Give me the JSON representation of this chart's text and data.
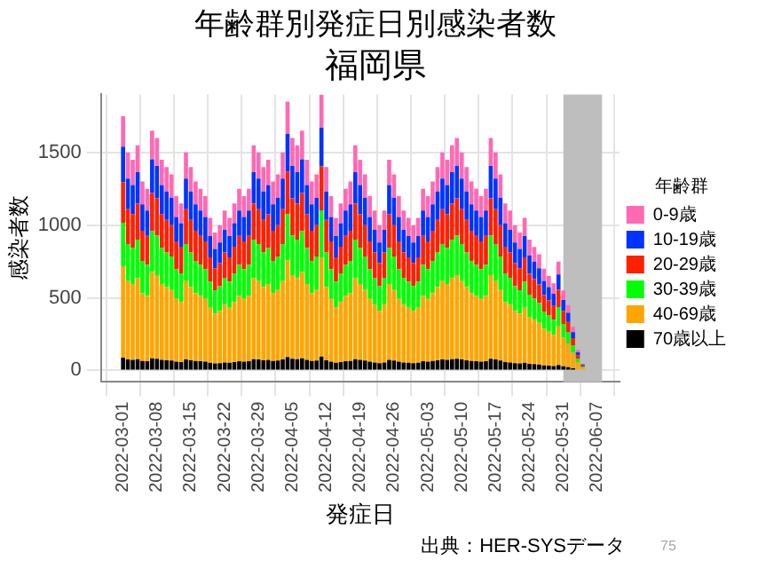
{
  "chart_data": {
    "type": "bar",
    "title": "年齢群別発症日別感染者数",
    "subtitle": "福岡県",
    "xlabel": "発症日",
    "ylabel": "感染者数",
    "legend_title": "年齢群",
    "annotations": [
      "出典：HER-SYSデータ",
      "75"
    ],
    "x": [
      "2022-03-01",
      "2022-03-02",
      "2022-03-03",
      "2022-03-04",
      "2022-03-05",
      "2022-03-06",
      "2022-03-07",
      "2022-03-08",
      "2022-03-09",
      "2022-03-10",
      "2022-03-11",
      "2022-03-12",
      "2022-03-13",
      "2022-03-14",
      "2022-03-15",
      "2022-03-16",
      "2022-03-17",
      "2022-03-18",
      "2022-03-19",
      "2022-03-20",
      "2022-03-21",
      "2022-03-22",
      "2022-03-23",
      "2022-03-24",
      "2022-03-25",
      "2022-03-26",
      "2022-03-27",
      "2022-03-28",
      "2022-03-29",
      "2022-03-30",
      "2022-03-31",
      "2022-04-01",
      "2022-04-02",
      "2022-04-03",
      "2022-04-04",
      "2022-04-05",
      "2022-04-06",
      "2022-04-07",
      "2022-04-08",
      "2022-04-09",
      "2022-04-10",
      "2022-04-11",
      "2022-04-12",
      "2022-04-13",
      "2022-04-14",
      "2022-04-15",
      "2022-04-16",
      "2022-04-17",
      "2022-04-18",
      "2022-04-19",
      "2022-04-20",
      "2022-04-21",
      "2022-04-22",
      "2022-04-23",
      "2022-04-24",
      "2022-04-25",
      "2022-04-26",
      "2022-04-27",
      "2022-04-28",
      "2022-04-29",
      "2022-04-30",
      "2022-05-01",
      "2022-05-02",
      "2022-05-03",
      "2022-05-04",
      "2022-05-05",
      "2022-05-06",
      "2022-05-07",
      "2022-05-08",
      "2022-05-09",
      "2022-05-10",
      "2022-05-11",
      "2022-05-12",
      "2022-05-13",
      "2022-05-14",
      "2022-05-15",
      "2022-05-16",
      "2022-05-17",
      "2022-05-18",
      "2022-05-19",
      "2022-05-20",
      "2022-05-21",
      "2022-05-22",
      "2022-05-23",
      "2022-05-24",
      "2022-05-25",
      "2022-05-26",
      "2022-05-27",
      "2022-05-28",
      "2022-05-29",
      "2022-05-30",
      "2022-05-31",
      "2022-06-01",
      "2022-06-02",
      "2022-06-03",
      "2022-06-04"
    ],
    "series": [
      {
        "name": "70歳以上",
        "color": "#000000",
        "values": [
          88,
          75,
          73,
          78,
          65,
          63,
          83,
          80,
          73,
          70,
          68,
          60,
          58,
          75,
          70,
          65,
          63,
          60,
          53,
          48,
          50,
          55,
          53,
          58,
          63,
          60,
          63,
          78,
          75,
          70,
          73,
          65,
          68,
          75,
          93,
          80,
          78,
          83,
          73,
          65,
          68,
          95,
          70,
          60,
          53,
          58,
          63,
          65,
          78,
          73,
          68,
          60,
          55,
          50,
          55,
          73,
          68,
          60,
          55,
          53,
          50,
          53,
          63,
          60,
          65,
          70,
          75,
          73,
          78,
          80,
          75,
          70,
          65,
          63,
          60,
          63,
          80,
          75,
          68,
          58,
          55,
          50,
          48,
          53,
          45,
          43,
          40,
          35,
          33,
          30,
          38,
          28,
          23,
          15,
          null,
          null
        ]
      },
      {
        "name": "40-69歳",
        "color": "#ffa500",
        "values": [
          630,
          540,
          522,
          558,
          468,
          450,
          594,
          576,
          522,
          504,
          486,
          432,
          414,
          540,
          504,
          468,
          450,
          432,
          378,
          342,
          360,
          396,
          378,
          414,
          450,
          432,
          450,
          558,
          540,
          504,
          522,
          468,
          486,
          540,
          666,
          576,
          558,
          594,
          522,
          468,
          486,
          684,
          504,
          432,
          378,
          414,
          450,
          468,
          558,
          522,
          486,
          432,
          396,
          360,
          396,
          522,
          486,
          432,
          396,
          378,
          360,
          378,
          450,
          432,
          468,
          504,
          540,
          522,
          558,
          576,
          540,
          504,
          468,
          450,
          432,
          450,
          576,
          540,
          486,
          414,
          396,
          360,
          342,
          378,
          324,
          306,
          288,
          252,
          234,
          216,
          270,
          198,
          162,
          108,
          54,
          18
        ]
      },
      {
        "name": "30-39歳",
        "color": "#00ff00",
        "values": [
          298,
          255,
          247,
          264,
          221,
          213,
          281,
          272,
          247,
          238,
          230,
          204,
          196,
          255,
          238,
          221,
          213,
          204,
          179,
          162,
          170,
          187,
          179,
          196,
          213,
          204,
          213,
          264,
          255,
          238,
          247,
          221,
          230,
          255,
          315,
          272,
          264,
          281,
          247,
          221,
          230,
          323,
          238,
          204,
          179,
          196,
          213,
          221,
          264,
          247,
          230,
          204,
          187,
          170,
          187,
          247,
          230,
          204,
          187,
          179,
          170,
          179,
          213,
          204,
          221,
          238,
          255,
          247,
          264,
          272,
          255,
          238,
          221,
          213,
          204,
          213,
          272,
          255,
          230,
          196,
          187,
          170,
          162,
          179,
          153,
          145,
          136,
          119,
          111,
          102,
          128,
          94,
          77,
          51,
          26,
          8
        ]
      },
      {
        "name": "20-29歳",
        "color": "#ff2000",
        "values": [
          280,
          240,
          232,
          248,
          208,
          200,
          264,
          256,
          232,
          224,
          216,
          192,
          184,
          240,
          224,
          208,
          200,
          192,
          168,
          152,
          160,
          176,
          168,
          184,
          200,
          192,
          200,
          248,
          240,
          224,
          232,
          208,
          216,
          240,
          296,
          256,
          248,
          264,
          232,
          208,
          216,
          304,
          224,
          192,
          168,
          184,
          200,
          208,
          248,
          232,
          216,
          192,
          176,
          160,
          176,
          232,
          216,
          192,
          176,
          168,
          160,
          168,
          200,
          192,
          208,
          224,
          240,
          232,
          248,
          256,
          240,
          224,
          208,
          200,
          192,
          200,
          256,
          240,
          216,
          184,
          176,
          160,
          152,
          168,
          144,
          136,
          128,
          112,
          104,
          96,
          120,
          88,
          72,
          48,
          24,
          8
        ]
      },
      {
        "name": "10-19歳",
        "color": "#0033ff",
        "values": [
          245,
          210,
          203,
          217,
          182,
          175,
          231,
          224,
          203,
          196,
          189,
          168,
          161,
          210,
          196,
          182,
          175,
          168,
          147,
          133,
          140,
          154,
          147,
          161,
          175,
          168,
          175,
          217,
          210,
          196,
          203,
          182,
          189,
          210,
          259,
          224,
          217,
          231,
          203,
          182,
          189,
          266,
          196,
          168,
          147,
          161,
          175,
          182,
          217,
          203,
          189,
          168,
          154,
          140,
          154,
          203,
          189,
          168,
          154,
          147,
          140,
          147,
          175,
          168,
          182,
          196,
          210,
          203,
          217,
          224,
          210,
          196,
          182,
          175,
          168,
          175,
          224,
          210,
          189,
          161,
          154,
          140,
          133,
          147,
          126,
          119,
          112,
          98,
          91,
          84,
          105,
          77,
          63,
          42,
          21,
          7
        ]
      },
      {
        "name": "0-9歳",
        "color": "#ff69b4",
        "values": [
          209,
          180,
          173,
          185,
          156,
          149,
          197,
          192,
          173,
          168,
          161,
          144,
          137,
          180,
          168,
          156,
          149,
          144,
          125,
          113,
          120,
          132,
          125,
          137,
          149,
          144,
          149,
          185,
          180,
          168,
          173,
          156,
          161,
          180,
          221,
          192,
          185,
          197,
          173,
          156,
          161,
          228,
          168,
          144,
          125,
          137,
          149,
          156,
          185,
          173,
          161,
          144,
          132,
          120,
          132,
          173,
          161,
          144,
          132,
          125,
          120,
          125,
          149,
          144,
          156,
          168,
          180,
          173,
          185,
          192,
          180,
          168,
          156,
          149,
          144,
          149,
          192,
          180,
          161,
          137,
          132,
          120,
          113,
          125,
          108,
          101,
          96,
          84,
          77,
          72,
          89,
          65,
          53,
          36,
          17,
          6
        ]
      }
    ],
    "stacked": true,
    "xlim": [
      "2022-02-28",
      "2022-06-08"
    ],
    "xticks": [
      "2022-03-01",
      "2022-03-08",
      "2022-03-15",
      "2022-03-22",
      "2022-03-29",
      "2022-04-05",
      "2022-04-12",
      "2022-04-19",
      "2022-04-26",
      "2022-05-03",
      "2022-05-10",
      "2022-05-17",
      "2022-05-24",
      "2022-05-31",
      "2022-06-07"
    ],
    "ylim": [
      -80,
      1900
    ],
    "yticks": [
      0,
      500,
      1000,
      1500
    ],
    "bands": [
      {
        "axis": "x",
        "from": "2022-05-31",
        "to": "2022-06-08",
        "color": "#bebebe"
      }
    ],
    "grid": true,
    "legend": "right"
  }
}
